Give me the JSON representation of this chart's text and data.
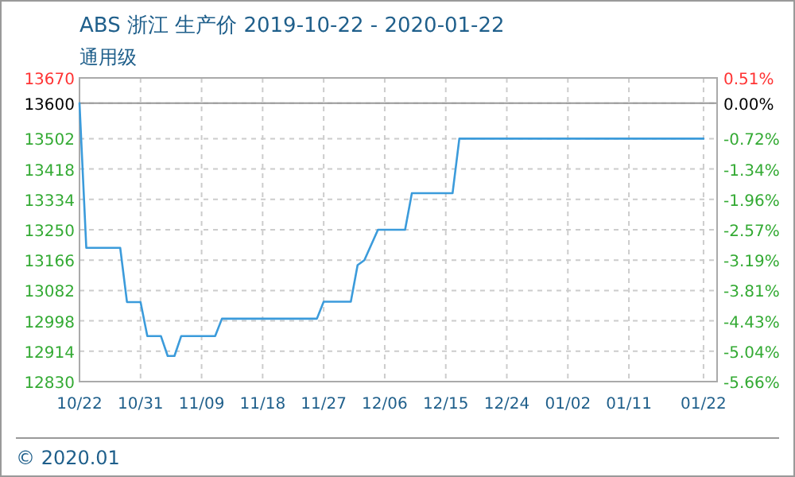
{
  "chart_data": {
    "type": "line",
    "title": "ABS 浙江 生产价 2019-10-22 - 2020-01-22",
    "subtitle": "通用级",
    "annotations": [
      "© 2020.01"
    ],
    "x": [
      "2019-10-22",
      "2019-10-23",
      "2019-10-28",
      "2019-10-29",
      "2019-10-31",
      "2019-11-01",
      "2019-11-03",
      "2019-11-04",
      "2019-11-05",
      "2019-11-06",
      "2019-11-11",
      "2019-11-12",
      "2019-11-26",
      "2019-11-27",
      "2019-12-01",
      "2019-12-02",
      "2019-12-03",
      "2019-12-05",
      "2019-12-09",
      "2019-12-10",
      "2019-12-16",
      "2019-12-17",
      "2020-01-22"
    ],
    "series": [
      {
        "color": "#3b9bdb",
        "values": [
          13600,
          13200,
          13200,
          13050,
          13050,
          12956,
          12956,
          12901,
          12901,
          12956,
          12956,
          13004,
          13004,
          13051,
          13051,
          13152,
          13166,
          13250,
          13250,
          13351,
          13351,
          13502,
          13502
        ]
      }
    ],
    "xlim": [
      "2019-10-22",
      "2020-01-24"
    ],
    "xticks": [
      {
        "value": "2019-10-22",
        "label": "10/22"
      },
      {
        "value": "2019-10-31",
        "label": "10/31"
      },
      {
        "value": "2019-11-09",
        "label": "11/09"
      },
      {
        "value": "2019-11-18",
        "label": "11/18"
      },
      {
        "value": "2019-11-27",
        "label": "11/27"
      },
      {
        "value": "2019-12-06",
        "label": "12/06"
      },
      {
        "value": "2019-12-15",
        "label": "12/15"
      },
      {
        "value": "2019-12-24",
        "label": "12/24"
      },
      {
        "value": "2020-01-02",
        "label": "01/02"
      },
      {
        "value": "2020-01-11",
        "label": "01/11"
      },
      {
        "value": "2020-01-22",
        "label": "01/22"
      }
    ],
    "ylim": [
      12830,
      13670
    ],
    "yticks": [
      12830,
      12914,
      12998,
      13082,
      13166,
      13250,
      13334,
      13418,
      13502,
      13600,
      13670
    ],
    "y2lim": [
      -5.66,
      0.51
    ],
    "y2ticks": [
      {
        "value": -5.66,
        "label": "-5.66%"
      },
      {
        "value": -5.04,
        "label": "-5.04%"
      },
      {
        "value": -4.43,
        "label": "-4.43%"
      },
      {
        "value": -3.81,
        "label": "-3.81%"
      },
      {
        "value": -3.19,
        "label": "-3.19%"
      },
      {
        "value": -2.57,
        "label": "-2.57%"
      },
      {
        "value": -1.96,
        "label": "-1.96%"
      },
      {
        "value": -1.34,
        "label": "-1.34%"
      },
      {
        "value": -0.72,
        "label": "-0.72%"
      },
      {
        "value": 0,
        "label": "0.00%"
      },
      {
        "value": 0.51,
        "label": "0.51%"
      }
    ],
    "ref_lines": [
      {
        "axis": "y",
        "value": 13600,
        "color": "#999999",
        "line_style": "solid"
      }
    ],
    "grid": true,
    "marker": "none",
    "line_style": "solid"
  }
}
